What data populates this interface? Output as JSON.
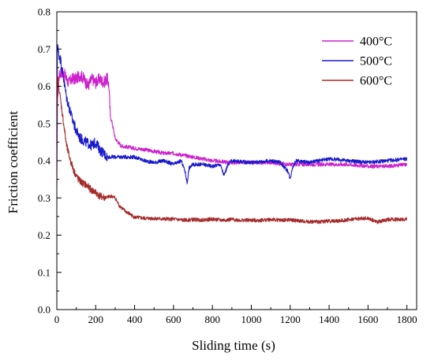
{
  "chart_data": {
    "type": "line",
    "title": "",
    "xlabel": "Sliding time (s)",
    "ylabel": "Friction coefficient",
    "xlim": [
      0,
      1850
    ],
    "ylim": [
      0,
      0.8
    ],
    "xticks": [
      0,
      200,
      400,
      600,
      800,
      1000,
      1200,
      1400,
      1600,
      1800
    ],
    "yticks": [
      0.0,
      0.1,
      0.2,
      0.3,
      0.4,
      0.5,
      0.6,
      0.7,
      0.8
    ],
    "ytick_labels": [
      "0.0",
      "0.1",
      "0.2",
      "0.3",
      "0.4",
      "0.5",
      "0.6",
      "0.7",
      "0.8"
    ],
    "grid": false,
    "legend_position": "top-right",
    "series": [
      {
        "name": "400°C",
        "color": "#cc22cc",
        "points": [
          [
            0,
            0.32
          ],
          [
            3,
            0.55
          ],
          [
            8,
            0.62
          ],
          [
            20,
            0.64
          ],
          [
            40,
            0.63
          ],
          [
            60,
            0.61
          ],
          [
            80,
            0.62
          ],
          [
            100,
            0.62
          ],
          [
            120,
            0.63
          ],
          [
            140,
            0.62
          ],
          [
            160,
            0.6
          ],
          [
            180,
            0.62
          ],
          [
            200,
            0.61
          ],
          [
            220,
            0.62
          ],
          [
            240,
            0.61
          ],
          [
            260,
            0.62
          ],
          [
            268,
            0.6
          ],
          [
            275,
            0.52
          ],
          [
            285,
            0.5
          ],
          [
            300,
            0.46
          ],
          [
            330,
            0.44
          ],
          [
            380,
            0.435
          ],
          [
            450,
            0.43
          ],
          [
            500,
            0.425
          ],
          [
            550,
            0.42
          ],
          [
            600,
            0.42
          ],
          [
            650,
            0.415
          ],
          [
            700,
            0.41
          ],
          [
            750,
            0.405
          ],
          [
            800,
            0.4
          ],
          [
            900,
            0.395
          ],
          [
            1000,
            0.395
          ],
          [
            1100,
            0.395
          ],
          [
            1200,
            0.39
          ],
          [
            1300,
            0.39
          ],
          [
            1400,
            0.39
          ],
          [
            1500,
            0.39
          ],
          [
            1600,
            0.385
          ],
          [
            1700,
            0.385
          ],
          [
            1800,
            0.39
          ]
        ]
      },
      {
        "name": "500°C",
        "color": "#1a1acc",
        "points": [
          [
            0,
            0.45
          ],
          [
            3,
            0.72
          ],
          [
            8,
            0.69
          ],
          [
            20,
            0.67
          ],
          [
            35,
            0.62
          ],
          [
            50,
            0.57
          ],
          [
            65,
            0.54
          ],
          [
            80,
            0.51
          ],
          [
            100,
            0.48
          ],
          [
            120,
            0.46
          ],
          [
            150,
            0.45
          ],
          [
            180,
            0.44
          ],
          [
            200,
            0.45
          ],
          [
            220,
            0.43
          ],
          [
            260,
            0.41
          ],
          [
            300,
            0.41
          ],
          [
            350,
            0.41
          ],
          [
            400,
            0.41
          ],
          [
            450,
            0.4
          ],
          [
            500,
            0.395
          ],
          [
            550,
            0.4
          ],
          [
            600,
            0.39
          ],
          [
            640,
            0.4
          ],
          [
            660,
            0.37
          ],
          [
            670,
            0.34
          ],
          [
            680,
            0.38
          ],
          [
            700,
            0.39
          ],
          [
            750,
            0.39
          ],
          [
            800,
            0.385
          ],
          [
            840,
            0.39
          ],
          [
            860,
            0.36
          ],
          [
            880,
            0.39
          ],
          [
            900,
            0.4
          ],
          [
            1000,
            0.395
          ],
          [
            1100,
            0.4
          ],
          [
            1150,
            0.395
          ],
          [
            1190,
            0.37
          ],
          [
            1200,
            0.35
          ],
          [
            1210,
            0.38
          ],
          [
            1230,
            0.4
          ],
          [
            1300,
            0.395
          ],
          [
            1400,
            0.405
          ],
          [
            1500,
            0.4
          ],
          [
            1600,
            0.395
          ],
          [
            1700,
            0.4
          ],
          [
            1800,
            0.405
          ]
        ]
      },
      {
        "name": "600°C",
        "color": "#a52a2a",
        "points": [
          [
            0,
            0.48
          ],
          [
            3,
            0.62
          ],
          [
            10,
            0.6
          ],
          [
            20,
            0.56
          ],
          [
            35,
            0.5
          ],
          [
            50,
            0.44
          ],
          [
            70,
            0.4
          ],
          [
            90,
            0.37
          ],
          [
            110,
            0.35
          ],
          [
            130,
            0.34
          ],
          [
            150,
            0.335
          ],
          [
            180,
            0.32
          ],
          [
            200,
            0.315
          ],
          [
            220,
            0.305
          ],
          [
            250,
            0.3
          ],
          [
            280,
            0.305
          ],
          [
            300,
            0.3
          ],
          [
            320,
            0.28
          ],
          [
            350,
            0.265
          ],
          [
            380,
            0.255
          ],
          [
            400,
            0.248
          ],
          [
            450,
            0.245
          ],
          [
            500,
            0.245
          ],
          [
            550,
            0.243
          ],
          [
            600,
            0.243
          ],
          [
            650,
            0.24
          ],
          [
            700,
            0.242
          ],
          [
            750,
            0.241
          ],
          [
            800,
            0.243
          ],
          [
            850,
            0.24
          ],
          [
            900,
            0.242
          ],
          [
            950,
            0.24
          ],
          [
            1000,
            0.24
          ],
          [
            1050,
            0.24
          ],
          [
            1100,
            0.242
          ],
          [
            1150,
            0.24
          ],
          [
            1200,
            0.241
          ],
          [
            1250,
            0.238
          ],
          [
            1300,
            0.236
          ],
          [
            1350,
            0.236
          ],
          [
            1400,
            0.238
          ],
          [
            1450,
            0.238
          ],
          [
            1500,
            0.242
          ],
          [
            1550,
            0.244
          ],
          [
            1600,
            0.245
          ],
          [
            1650,
            0.235
          ],
          [
            1700,
            0.242
          ],
          [
            1750,
            0.242
          ],
          [
            1800,
            0.243
          ]
        ]
      }
    ]
  }
}
